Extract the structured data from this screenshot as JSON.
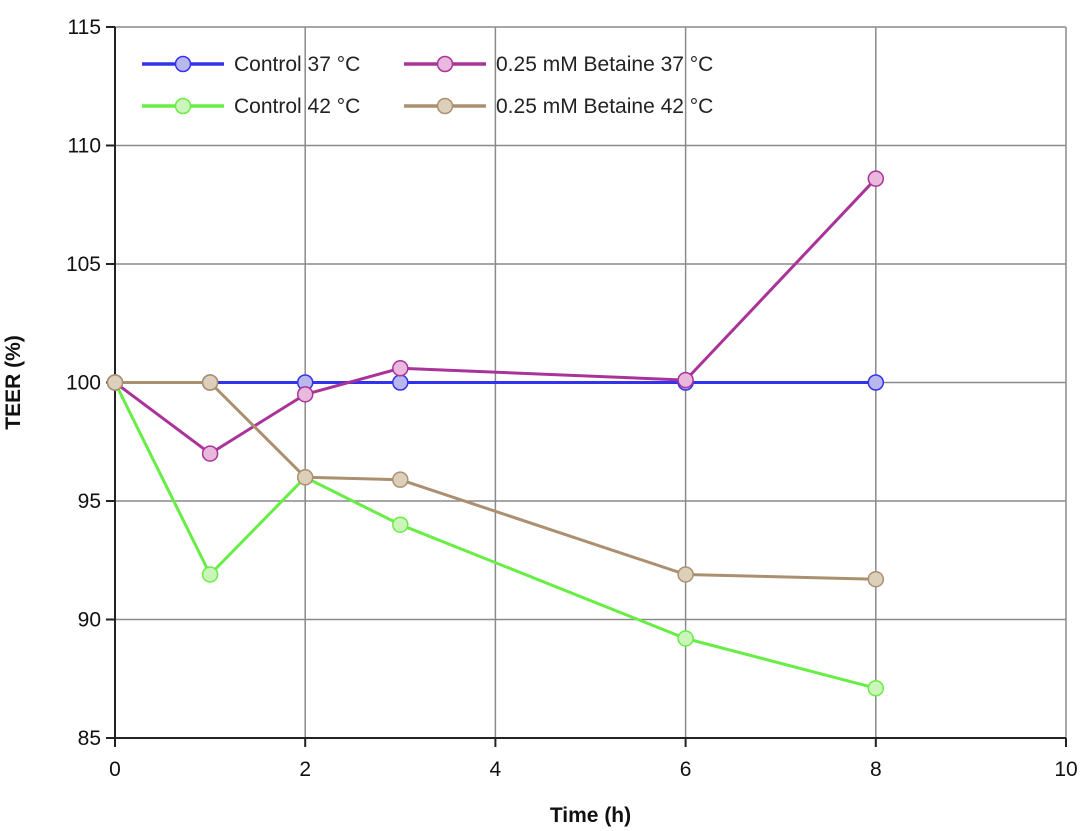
{
  "chart_data": {
    "type": "line",
    "title": "",
    "xlabel": "Time (h)",
    "ylabel": "TEER (%)",
    "xlim": [
      0,
      10
    ],
    "ylim": [
      85,
      115
    ],
    "xticks": [
      0,
      2,
      4,
      6,
      8,
      10
    ],
    "yticks": [
      85,
      90,
      95,
      100,
      105,
      110,
      115
    ],
    "grid": true,
    "legend_position": "top-left",
    "x": [
      0,
      1,
      2,
      3,
      6,
      8
    ],
    "series": [
      {
        "name": "Control 37 °C",
        "line_color": "#3333ee",
        "marker_fill": "#b8b8ee",
        "values": [
          100,
          100,
          100,
          100,
          100,
          100
        ]
      },
      {
        "name": "Control 42 °C",
        "line_color": "#66ee44",
        "marker_fill": "#ccf5bb",
        "values": [
          100,
          91.9,
          96.0,
          94.0,
          89.2,
          87.1
        ]
      },
      {
        "name": "0.25 mM Betaine 37 °C",
        "line_color": "#aa3399",
        "marker_fill": "#e8b8dd",
        "values": [
          100,
          97.0,
          99.5,
          100.6,
          100.1,
          108.6
        ]
      },
      {
        "name": "0.25 mM Betaine 42 °C",
        "line_color": "#aa9070",
        "marker_fill": "#ddd0bb",
        "values": [
          100,
          100,
          96.0,
          95.9,
          91.9,
          91.7
        ]
      }
    ]
  }
}
